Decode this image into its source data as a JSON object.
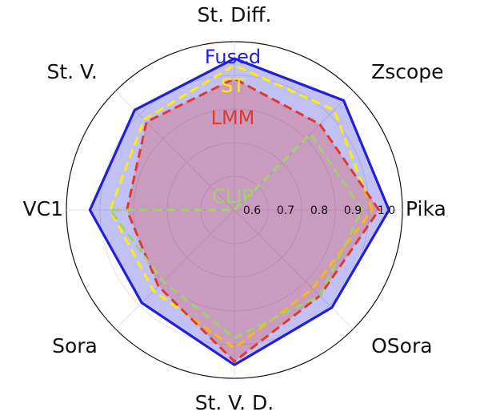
{
  "chart_data": {
    "type": "radar",
    "title": "",
    "categories": [
      "Pika",
      "Zscope",
      "St. Diff.",
      "St. V.",
      "VC1",
      "Sora",
      "St. V. D.",
      "OSora"
    ],
    "rlim": [
      0.5,
      1.0
    ],
    "radial_ticks": [
      0.6,
      0.7,
      0.8,
      0.9,
      1.0
    ],
    "radial_tick_labels": [
      "0.6",
      "0.7",
      "0.8",
      "0.9",
      "1.0"
    ],
    "grid": true,
    "legend_placement": "center-top",
    "series": [
      {
        "name": "Fused",
        "color": "#1f1fdc",
        "line_style": "solid",
        "filled": true,
        "values": [
          0.96,
          0.96,
          0.95,
          0.92,
          0.93,
          0.89,
          0.96,
          0.91
        ]
      },
      {
        "name": "ST",
        "color": "#ffee00",
        "line_style": "dashed",
        "filled": false,
        "values": [
          0.91,
          0.92,
          0.93,
          0.88,
          0.87,
          0.84,
          0.91,
          0.83
        ]
      },
      {
        "name": "LMM",
        "color": "#e03a2e",
        "line_style": "dashed",
        "filled": true,
        "values": [
          0.93,
          0.86,
          0.89,
          0.87,
          0.82,
          0.82,
          0.95,
          0.86
        ]
      },
      {
        "name": "CLIP",
        "color": "#a2cf6e",
        "line_style": "dashed",
        "filled": false,
        "values": [
          0.88,
          0.82,
          0.5,
          0.5,
          0.87,
          0.8,
          0.88,
          0.86
        ]
      }
    ]
  }
}
